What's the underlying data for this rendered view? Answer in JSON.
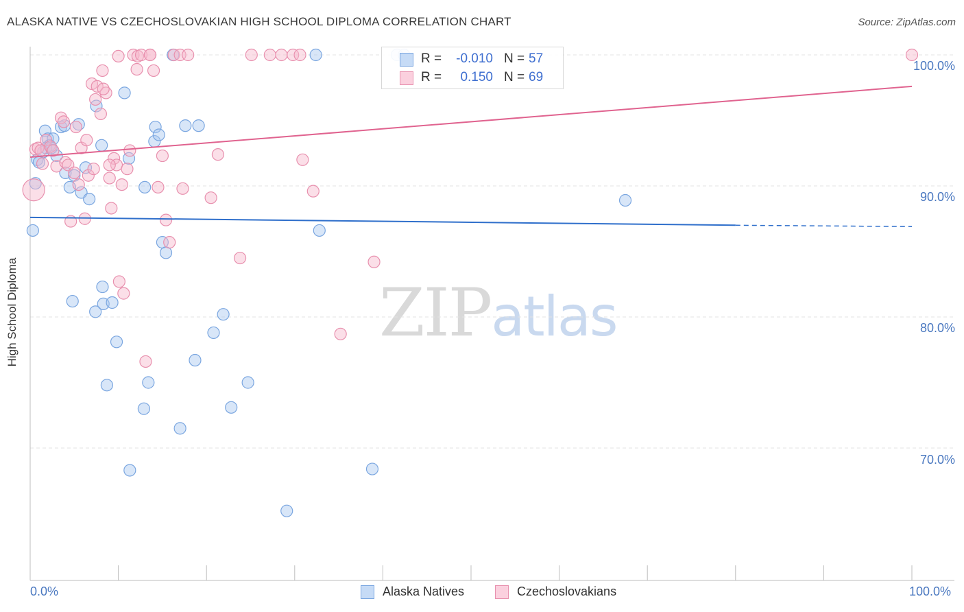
{
  "title": "ALASKA NATIVE VS CZECHOSLOVAKIAN HIGH SCHOOL DIPLOMA CORRELATION CHART",
  "source": "Source: ZipAtlas.com",
  "watermark": {
    "zip": "ZIP",
    "atlas": "atlas"
  },
  "legend": {
    "r_label": "R =",
    "n_label": "N =",
    "rows": [
      {
        "r": "-0.010",
        "n": "57"
      },
      {
        "r": "0.150",
        "n": "69"
      }
    ]
  },
  "colors": {
    "blue_fill": "#a9c8f0",
    "blue_stroke": "#7aa6e0",
    "blue_line": "#2f6fcb",
    "pink_fill": "#f6b8cc",
    "pink_stroke": "#e890ae",
    "pink_line": "#e0638f",
    "grid": "#e3e3e3",
    "tick_text": "#4a78c0"
  },
  "chart_data": {
    "type": "scatter",
    "title": "ALASKA NATIVE VS CZECHOSLOVAKIAN HIGH SCHOOL DIPLOMA CORRELATION CHART",
    "xlabel": "",
    "ylabel": "High School Diploma",
    "xlim": [
      0,
      100
    ],
    "ylim": [
      62,
      101.5
    ],
    "x_ticks": [
      "0.0%",
      "100.0%"
    ],
    "y_ticks": [
      {
        "value": 100,
        "label": "100.0%"
      },
      {
        "value": 90,
        "label": "90.0%"
      },
      {
        "value": 80,
        "label": "80.0%"
      },
      {
        "value": 70,
        "label": "70.0%"
      }
    ],
    "grid": true,
    "legend_position": "top-center",
    "series": [
      {
        "name": "Alaska Natives",
        "color": "#a9c8f0",
        "trend": {
          "x": [
            0,
            80,
            100
          ],
          "y": [
            87.6,
            87.0,
            86.9
          ],
          "dashed_from": 80
        },
        "points": [
          [
            0.3,
            86.6
          ],
          [
            0.6,
            90.2
          ],
          [
            0.8,
            92.0
          ],
          [
            1.0,
            91.8
          ],
          [
            1.5,
            92.6
          ],
          [
            1.7,
            94.2
          ],
          [
            2.0,
            93.6
          ],
          [
            2.2,
            93.1
          ],
          [
            2.6,
            93.6
          ],
          [
            3.0,
            92.3
          ],
          [
            3.5,
            94.5
          ],
          [
            4.0,
            91.0
          ],
          [
            4.5,
            89.9
          ],
          [
            5.0,
            90.8
          ],
          [
            5.5,
            94.7
          ],
          [
            5.8,
            89.5
          ],
          [
            6.3,
            91.4
          ],
          [
            6.7,
            89.0
          ],
          [
            7.5,
            96.1
          ],
          [
            8.1,
            93.1
          ],
          [
            10.7,
            97.1
          ],
          [
            11.2,
            92.1
          ],
          [
            13.0,
            89.9
          ],
          [
            14.1,
            93.4
          ],
          [
            14.2,
            94.5
          ],
          [
            14.6,
            93.9
          ],
          [
            15.0,
            85.7
          ],
          [
            15.4,
            84.9
          ],
          [
            16.2,
            100.0
          ],
          [
            17.6,
            94.6
          ],
          [
            19.1,
            94.6
          ],
          [
            32.4,
            100.0
          ],
          [
            41.6,
            100.0
          ],
          [
            42.4,
            100.0
          ],
          [
            32.8,
            86.6
          ],
          [
            67.5,
            88.9
          ],
          [
            4.8,
            81.2
          ],
          [
            7.4,
            80.4
          ],
          [
            8.2,
            82.3
          ],
          [
            8.3,
            81.0
          ],
          [
            9.3,
            81.1
          ],
          [
            9.8,
            78.1
          ],
          [
            8.7,
            74.8
          ],
          [
            12.9,
            73.0
          ],
          [
            13.4,
            75.0
          ],
          [
            11.3,
            68.3
          ],
          [
            17.0,
            71.5
          ],
          [
            18.7,
            76.7
          ],
          [
            20.8,
            78.8
          ],
          [
            21.9,
            80.2
          ],
          [
            22.8,
            73.1
          ],
          [
            24.7,
            75.0
          ],
          [
            29.1,
            65.2
          ],
          [
            38.8,
            68.4
          ],
          [
            1.8,
            92.9
          ],
          [
            2.4,
            92.9
          ],
          [
            3.9,
            94.6
          ]
        ]
      },
      {
        "name": "Czechoslovakians",
        "color": "#f6b8cc",
        "trend": {
          "x": [
            0,
            100
          ],
          "y": [
            92.2,
            97.6
          ]
        },
        "points": [
          [
            0.4,
            89.7
          ],
          [
            0.6,
            92.8
          ],
          [
            0.9,
            92.9
          ],
          [
            1.2,
            92.7
          ],
          [
            1.4,
            91.7
          ],
          [
            1.8,
            93.5
          ],
          [
            2.3,
            93.0
          ],
          [
            2.6,
            92.7
          ],
          [
            3.0,
            91.5
          ],
          [
            3.5,
            95.2
          ],
          [
            3.8,
            94.9
          ],
          [
            4.0,
            91.8
          ],
          [
            4.3,
            91.6
          ],
          [
            4.6,
            87.3
          ],
          [
            5.0,
            91.0
          ],
          [
            5.2,
            94.5
          ],
          [
            5.5,
            90.1
          ],
          [
            5.8,
            92.9
          ],
          [
            6.2,
            87.5
          ],
          [
            6.4,
            93.5
          ],
          [
            6.6,
            90.8
          ],
          [
            7.0,
            97.8
          ],
          [
            7.4,
            96.6
          ],
          [
            7.6,
            97.6
          ],
          [
            8.0,
            95.5
          ],
          [
            8.2,
            98.8
          ],
          [
            8.6,
            97.1
          ],
          [
            9.0,
            90.6
          ],
          [
            9.2,
            88.3
          ],
          [
            9.5,
            92.1
          ],
          [
            9.8,
            91.6
          ],
          [
            10.1,
            82.7
          ],
          [
            10.4,
            90.1
          ],
          [
            10.6,
            81.8
          ],
          [
            11.0,
            91.3
          ],
          [
            11.3,
            92.7
          ],
          [
            11.7,
            100.0
          ],
          [
            12.2,
            99.9
          ],
          [
            12.6,
            100.0
          ],
          [
            13.1,
            76.6
          ],
          [
            13.6,
            100.0
          ],
          [
            14.0,
            98.8
          ],
          [
            14.5,
            89.9
          ],
          [
            15.0,
            92.3
          ],
          [
            15.4,
            87.4
          ],
          [
            15.8,
            85.7
          ],
          [
            16.3,
            100.0
          ],
          [
            17.0,
            100.0
          ],
          [
            17.3,
            89.8
          ],
          [
            17.9,
            100.0
          ],
          [
            20.5,
            89.1
          ],
          [
            21.3,
            92.4
          ],
          [
            23.8,
            84.5
          ],
          [
            25.1,
            100.0
          ],
          [
            27.2,
            100.0
          ],
          [
            28.5,
            100.0
          ],
          [
            29.8,
            100.0
          ],
          [
            30.6,
            100.0
          ],
          [
            30.9,
            92.0
          ],
          [
            32.1,
            89.6
          ],
          [
            35.2,
            78.7
          ],
          [
            39.0,
            84.2
          ],
          [
            100.0,
            100.0
          ],
          [
            12.1,
            98.9
          ],
          [
            9.0,
            91.6
          ],
          [
            8.3,
            97.4
          ],
          [
            7.2,
            91.3
          ],
          [
            13.6,
            100.0
          ],
          [
            10.0,
            99.9
          ]
        ]
      }
    ]
  },
  "bottom_legend": [
    {
      "label": "Alaska Natives"
    },
    {
      "label": "Czechoslovakians"
    }
  ]
}
